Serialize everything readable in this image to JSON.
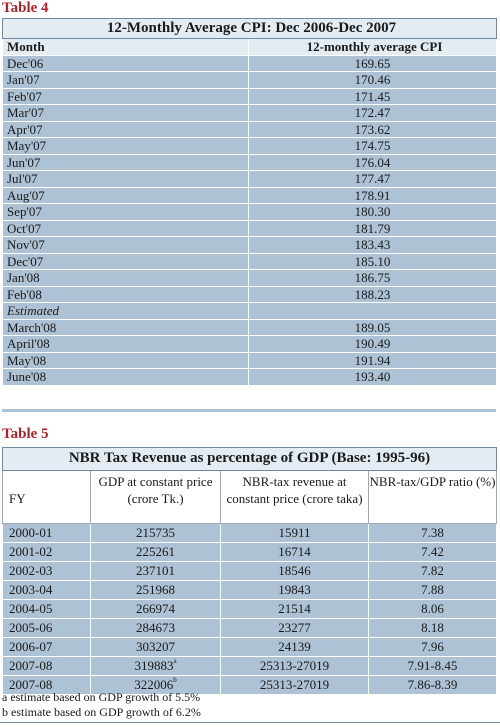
{
  "table4": {
    "label": "Table 4",
    "title": "12-Monthly Average CPI: Dec 2006-Dec 2007",
    "col_month": "Month",
    "col_value": "12-monthly average CPI",
    "rows": [
      {
        "month": "Dec'06",
        "value": "169.65"
      },
      {
        "month": "Jan'07",
        "value": "170.46"
      },
      {
        "month": "Feb'07",
        "value": "171.45"
      },
      {
        "month": "Mar'07",
        "value": "172.47"
      },
      {
        "month": "Apr'07",
        "value": "173.62"
      },
      {
        "month": "May'07",
        "value": "174.75"
      },
      {
        "month": "Jun'07",
        "value": "176.04"
      },
      {
        "month": "Jul'07",
        "value": "177.47"
      },
      {
        "month": "Aug'07",
        "value": "178.91"
      },
      {
        "month": "Sep'07",
        "value": "180.30"
      },
      {
        "month": "Oct'07",
        "value": "181.79"
      },
      {
        "month": "Nov'07",
        "value": "183.43"
      },
      {
        "month": "Dec'07",
        "value": "185.10"
      },
      {
        "month": "Jan'08",
        "value": "186.75"
      },
      {
        "month": "Feb'08",
        "value": "188.23"
      }
    ],
    "estimated_label": "Estimated",
    "estimated_rows": [
      {
        "month": "March'08",
        "value": "189.05"
      },
      {
        "month": "April'08",
        "value": "190.49"
      },
      {
        "month": "May'08",
        "value": "191.94"
      },
      {
        "month": "June'08",
        "value": "193.40"
      }
    ]
  },
  "table5": {
    "label": "Table 5",
    "title": "NBR Tax Revenue as percentage of GDP (Base: 1995-96)",
    "col_fy": "FY",
    "col_gdp": "GDP at constant price (crore Tk.)",
    "col_nbr": "NBR-tax revenue at constant price (crore taka)",
    "col_ratio": "NBR-tax/GDP ratio (%)",
    "rows": [
      {
        "fy": "2000-01",
        "gdp": "215735",
        "nbr": "15911",
        "ratio": "7.38",
        "sup": ""
      },
      {
        "fy": "2001-02",
        "gdp": "225261",
        "nbr": "16714",
        "ratio": "7.42",
        "sup": ""
      },
      {
        "fy": "2002-03",
        "gdp": "237101",
        "nbr": "18546",
        "ratio": "7.82",
        "sup": ""
      },
      {
        "fy": "2003-04",
        "gdp": "251968",
        "nbr": "19843",
        "ratio": "7.88",
        "sup": ""
      },
      {
        "fy": "2004-05",
        "gdp": "266974",
        "nbr": "21514",
        "ratio": "8.06",
        "sup": ""
      },
      {
        "fy": "2005-06",
        "gdp": "284673",
        "nbr": "23277",
        "ratio": "8.18",
        "sup": ""
      },
      {
        "fy": "2006-07",
        "gdp": "303207",
        "nbr": "24139",
        "ratio": "7.96",
        "sup": ""
      },
      {
        "fy": "2007-08",
        "gdp": "319883",
        "nbr": "25313-27019",
        "ratio": "7.91-8.45",
        "sup": "a"
      },
      {
        "fy": "2007-08",
        "gdp": "322006",
        "nbr": "25313-27019",
        "ratio": "7.86-8.39",
        "sup": "b"
      }
    ],
    "footnote_a": "a estimate based on GDP growth of 5.5%",
    "footnote_b": "b estimate based on GDP growth of 6.2%"
  }
}
